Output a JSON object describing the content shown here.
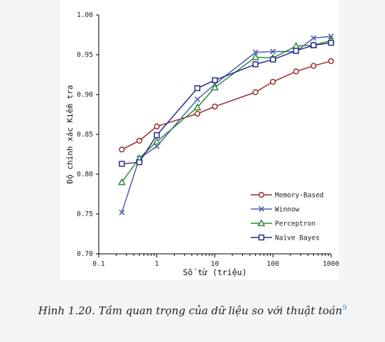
{
  "chart_data": {
    "type": "line",
    "xscale": "log",
    "xlabel": "Số từ (triệu)",
    "ylabel": "Độ chính xác Kiểm tra",
    "xlim": [
      0.1,
      1000
    ],
    "ylim": [
      0.7,
      1.0
    ],
    "xticks": [
      {
        "value": 0.1,
        "label": "0.1"
      },
      {
        "value": 1,
        "label": "1"
      },
      {
        "value": 10,
        "label": "10"
      },
      {
        "value": 100,
        "label": "100"
      },
      {
        "value": 1000,
        "label": "1000"
      }
    ],
    "yticks": [
      {
        "value": 0.7,
        "label": "0.70"
      },
      {
        "value": 0.75,
        "label": "0.75"
      },
      {
        "value": 0.8,
        "label": "0.80"
      },
      {
        "value": 0.85,
        "label": "0.85"
      },
      {
        "value": 0.9,
        "label": "0.90"
      },
      {
        "value": 0.95,
        "label": "0.95"
      },
      {
        "value": 1.0,
        "label": "1.00"
      }
    ],
    "legend_position": "lower-right",
    "series": [
      {
        "name": "Memory-Based",
        "color": "#9b2d2d",
        "marker": "circle",
        "x": [
          0.25,
          0.5,
          1,
          5,
          10,
          50,
          100,
          250,
          500,
          1000
        ],
        "y": [
          0.831,
          0.842,
          0.86,
          0.876,
          0.885,
          0.903,
          0.916,
          0.929,
          0.936,
          0.942
        ]
      },
      {
        "name": "Winnow",
        "color": "#5060b0",
        "marker": "x",
        "x": [
          0.25,
          0.5,
          1,
          5,
          10,
          50,
          100,
          250,
          500,
          1000
        ],
        "y": [
          0.752,
          0.82,
          0.835,
          0.894,
          0.913,
          0.953,
          0.954,
          0.954,
          0.971,
          0.973
        ]
      },
      {
        "name": "Perceptron",
        "color": "#2e8b3a",
        "marker": "triangle",
        "x": [
          0.25,
          0.5,
          1,
          5,
          10,
          50,
          100,
          250,
          500,
          1000
        ],
        "y": [
          0.79,
          0.82,
          0.841,
          0.884,
          0.909,
          0.947,
          0.946,
          0.961,
          0.962,
          0.968
        ]
      },
      {
        "name": "Naïve Bayes",
        "color": "#2c2c8c",
        "marker": "square",
        "x": [
          0.25,
          0.5,
          1,
          5,
          10,
          50,
          100,
          250,
          500,
          1000
        ],
        "y": [
          0.813,
          0.815,
          0.849,
          0.908,
          0.918,
          0.938,
          0.944,
          0.955,
          0.962,
          0.965
        ]
      }
    ]
  },
  "caption": {
    "text": "Hình 1.20. Tầm quan trọng của dữ liệu so với thuật toán",
    "footnote": "9"
  }
}
